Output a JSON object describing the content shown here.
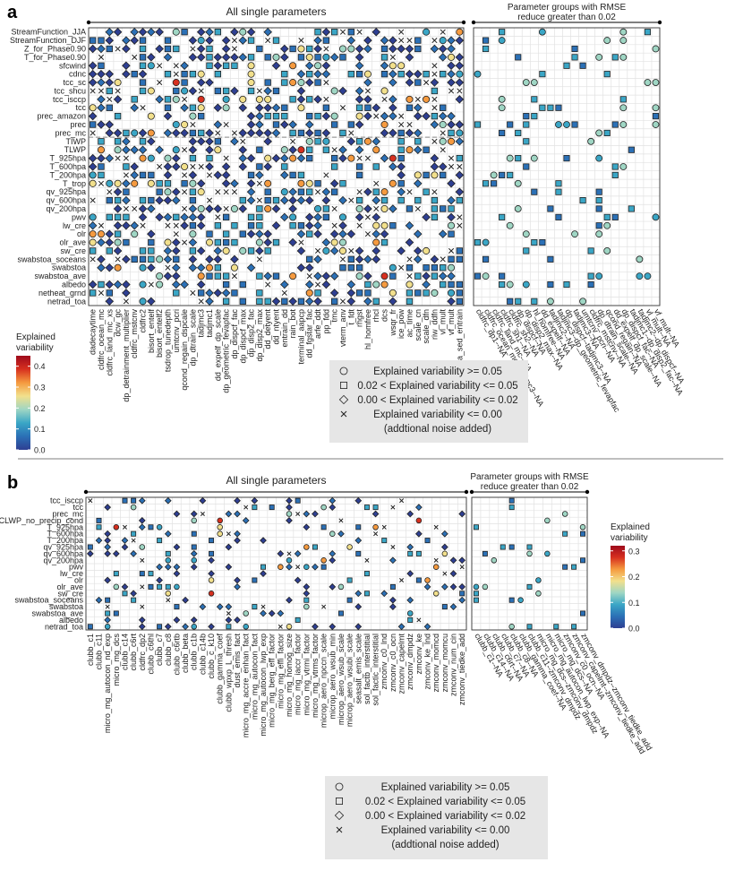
{
  "colors": {
    "scale": [
      "#2e3f92",
      "#2b70b6",
      "#3aa6c6",
      "#9fd6c4",
      "#f2e08c",
      "#f59a3f",
      "#d7301f",
      "#9e0a1c"
    ],
    "grid": "#e2e2e2",
    "legend_bg": "#e6e6e6"
  },
  "chart_data": [
    {
      "panel": "a",
      "type": "scatter",
      "title": "All single parameters",
      "subtitle": "Parameter groups with RMSE reduce greater than 0.02",
      "colorbar": {
        "title": "Explained variability",
        "range": [
          0,
          0.45
        ],
        "ticks": [
          "0.0",
          "0.1",
          "0.2",
          "0.3",
          "0.4"
        ]
      },
      "symbol_legend": [
        {
          "symbol": "circle",
          "label": "Explained variability >= 0.05"
        },
        {
          "symbol": "square",
          "label": "0.02 < Explained variability <= 0.05"
        },
        {
          "symbol": "diamond",
          "label": "0.00 < Explained variability <= 0.02"
        },
        {
          "symbol": "cross",
          "label": "Explained variability <= 0.00"
        },
        {
          "symbol": "none",
          "label": "(addtional noise added)"
        }
      ],
      "rows": [
        "StreamFunction_JJA",
        "StreamFunction_DJF",
        "Z_for_Phase0.90",
        "T_for_Phase0.90",
        "sfcwind",
        "cdnc",
        "tcc_sc",
        "tcc_shcu",
        "tcc_isccp",
        "tcc",
        "prec_amazon",
        "prec",
        "prec_mc",
        "TIWP",
        "TLWP",
        "T_925hpa",
        "T_600hpa",
        "T_200hpa",
        "T_trop",
        "qv_925hpa",
        "qv_600hpa",
        "qv_200hpa",
        "pwv",
        "lw_cre",
        "olr",
        "olr_ave",
        "sw_cre",
        "swabstoa_soceans",
        "swabstoa",
        "swabstoa_ave",
        "albedo",
        "netheat_grnd",
        "netrad_toa"
      ],
      "separator_after_row": "prec_mc",
      "single_params": [
        "dadecaytime",
        "cldfrc_ocean_mc",
        "cldfrc_land_mc_xs",
        "dcw_gc",
        "dp_detrainment_multiplier",
        "cldfrc_mstcnv",
        "cldfrc2",
        "bisort_entelf",
        "bisort_entelf2",
        "tsdrop_tunedepth",
        "umtcnv_pcri",
        "qcond_regain_dspcale",
        "dp_dtrain_scale",
        "tadjmc3",
        "tadjmc1",
        "dd_expelf_dp_scale",
        "dp_geometric_fevapfac",
        "dp_dispcf_fac",
        "dp_dispcf_max",
        "dp_disp2_fac",
        "dp_disp2_max",
        "dd_detyent",
        "dd_ntyent",
        "entrain_dd",
        "rain_bot",
        "terminal_aapcp",
        "dd_fgstar_fac",
        "arfe_ddt",
        "pp_fdd",
        "tmc",
        "vterm_anv",
        "t_fdt",
        "rhgst",
        "hl_homfree",
        "rhcl",
        "dcs",
        "wsqr_fr",
        "ice_pow",
        "ac_time",
        "scale_cn",
        "scale_dfn",
        "riw_ddfn",
        "vl_mult",
        "vf_mult",
        "a_sed_entrain"
      ],
      "group_params": [
        "cldfrc_dp1--NA",
        "cldfrc_ocean_mc--tadjmc3--NA",
        "cldfrc_land_mc--NA",
        "cldfrc_sh1--NA",
        "cldfrc_sh2--NA",
        "dp_dispcf--NA",
        "dp_disp2_max--NA",
        "hl_homfree--NA",
        "dd_expelf--NA",
        "tadjmc2--NA",
        "tadjmc3--dp_geometric_fevapfac",
        "dp_dispcf--tadjmc3--NA",
        "tadjmc3--NA",
        "umtcnv_pcri--NA",
        "cldfrc_mstcnv--NA",
        "dp_dtrain_scale--NA",
        "qcond_regain--NA",
        "dd_expelf_dp_scale--NA",
        "dp_dispcf_fac--NA",
        "tadjmc1--dp_disp2_fac--NA",
        "tadjmc2--dp_dispcf--NA",
        "vl_mult--NA",
        "vf_mult--NA"
      ]
    },
    {
      "panel": "b",
      "type": "scatter",
      "title": "All single parameters",
      "subtitle": "Parameter groups with RMSE reduce greater than 0.02",
      "colorbar": {
        "title": "Explained variability",
        "range": [
          0,
          0.32
        ],
        "ticks": [
          "0.0",
          "0.1",
          "0.2",
          "0.3"
        ]
      },
      "symbol_legend": [
        {
          "symbol": "circle",
          "label": "Explained variability >= 0.05"
        },
        {
          "symbol": "square",
          "label": "0.02 < Explained variability <= 0.05"
        },
        {
          "symbol": "diamond",
          "label": "0.00 < Explained variability <= 0.02"
        },
        {
          "symbol": "cross",
          "label": "Explained variability <= 0.00"
        },
        {
          "symbol": "none",
          "label": "(addtional noise added)"
        }
      ],
      "rows": [
        "tcc_isccp",
        "tcc",
        "prec_mc",
        "CLWP_no_precip_cond",
        "T_925hpa",
        "T_600hpa",
        "T_200hpa",
        "qv_925hpa",
        "qv_600hpa",
        "qv_200hpa",
        "pwv",
        "lw_cre",
        "olr",
        "olr_ave",
        "sw_cre",
        "swabstoa_soceans",
        "swabstoa",
        "swabstoa_ave",
        "albedo",
        "netrad_toa"
      ],
      "single_params": [
        "clubb_c1",
        "clubb_c11",
        "micro_mg_autocon_nd_exp",
        "micro_mg_dcs",
        "clubb_c14",
        "clubb_c6rt",
        "cldfrc_dp2",
        "clubb_c6thl",
        "clubb_c7",
        "clubb_c8",
        "clubb_c6rtb",
        "clubb_beta",
        "clubb_c1b",
        "clubb_c14b",
        "clubb_c_k10",
        "clubb_gamma_coef",
        "clubb_wpxp_L_thresh",
        "dust_emis_fact",
        "micro_mg_accre_enhan_fact",
        "micro_mg_autocon_fact",
        "micro_mg_autocon_lwp_exp",
        "micro_mg_berg_eff_factor",
        "micro_mg_effi_factor",
        "micro_mg_homog_size",
        "micro_mg_iaccr_factor",
        "micro_mg_vtrmi_factor",
        "micro_mg_vtrms_factor",
        "microp_aero_npccn_scale",
        "microp_aero_wsub_min",
        "microp_aero_wsub_scale",
        "microp_aero_wsubi_scale",
        "seasalt_emis_scale",
        "sol_factb_interstitial",
        "sol_factic_interstitial",
        "zmconv_c0_lnd",
        "zmconv_c0_ocn",
        "zmconv_capelmt",
        "zmconv_dmpdz",
        "zmconv_ke",
        "zmconv_ke_lnd",
        "zmconv_momcd",
        "zmconv_momcu",
        "zmconv_num_cin",
        "zmconv_tiedke_add"
      ],
      "group_params": [
        "clubb_c1--NA",
        "clubb_c14--NA",
        "clubb_c6rt--NA",
        "clubb_c7--NA",
        "clubb_c8--NA",
        "clubb_gamma_coef--NA",
        "clubb_c11--zmconv_dmpdz",
        "micro_mg_dcs--zmconv_dmpdz",
        "micro_mg_autocon_lwp_exp--NA",
        "micro_mg_dcs--NA",
        "zmconv_c0_ocn--NA",
        "zmconv_capelmt--zmconv_tiedke_add",
        "zmconv_dmpdz--zmconv_tiedke_add"
      ]
    }
  ]
}
